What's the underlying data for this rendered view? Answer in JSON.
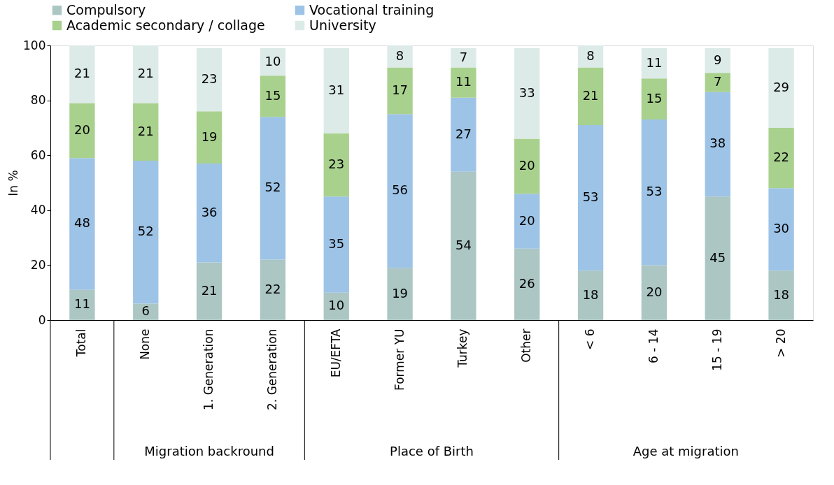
{
  "chart_data": {
    "type": "bar",
    "stacked": true,
    "data_labels": true,
    "ylabel": "In %",
    "ylim": [
      0,
      100
    ],
    "yticks": [
      0,
      20,
      40,
      60,
      80,
      100
    ],
    "grid": false,
    "legend": "top",
    "categories": [
      "Total",
      "None",
      "1. Generation",
      "2. Generation",
      "EU/EFTA",
      "Former YU",
      "Turkey",
      "Other",
      "< 6",
      "6 - 14",
      "15 - 19",
      "> 20"
    ],
    "series": [
      {
        "name": "Compulsory",
        "color": "#abc6c3",
        "values": [
          11,
          6,
          21,
          22,
          10,
          19,
          54,
          26,
          18,
          20,
          45,
          18
        ]
      },
      {
        "name": "Vocational training",
        "color": "#9dc3e6",
        "values": [
          48,
          52,
          36,
          52,
          35,
          56,
          27,
          20,
          53,
          53,
          38,
          30
        ]
      },
      {
        "name": "Academic secondary / collage",
        "color": "#a9d18e",
        "values": [
          20,
          21,
          19,
          15,
          23,
          17,
          11,
          20,
          21,
          15,
          7,
          22
        ]
      },
      {
        "name": "University",
        "color": "#dcebe8",
        "values": [
          21,
          21,
          23,
          10,
          31,
          8,
          7,
          33,
          8,
          11,
          9,
          29
        ]
      }
    ],
    "annotations": [
      "Migration backround",
      "Place of Birth",
      "Age at migration"
    ]
  }
}
